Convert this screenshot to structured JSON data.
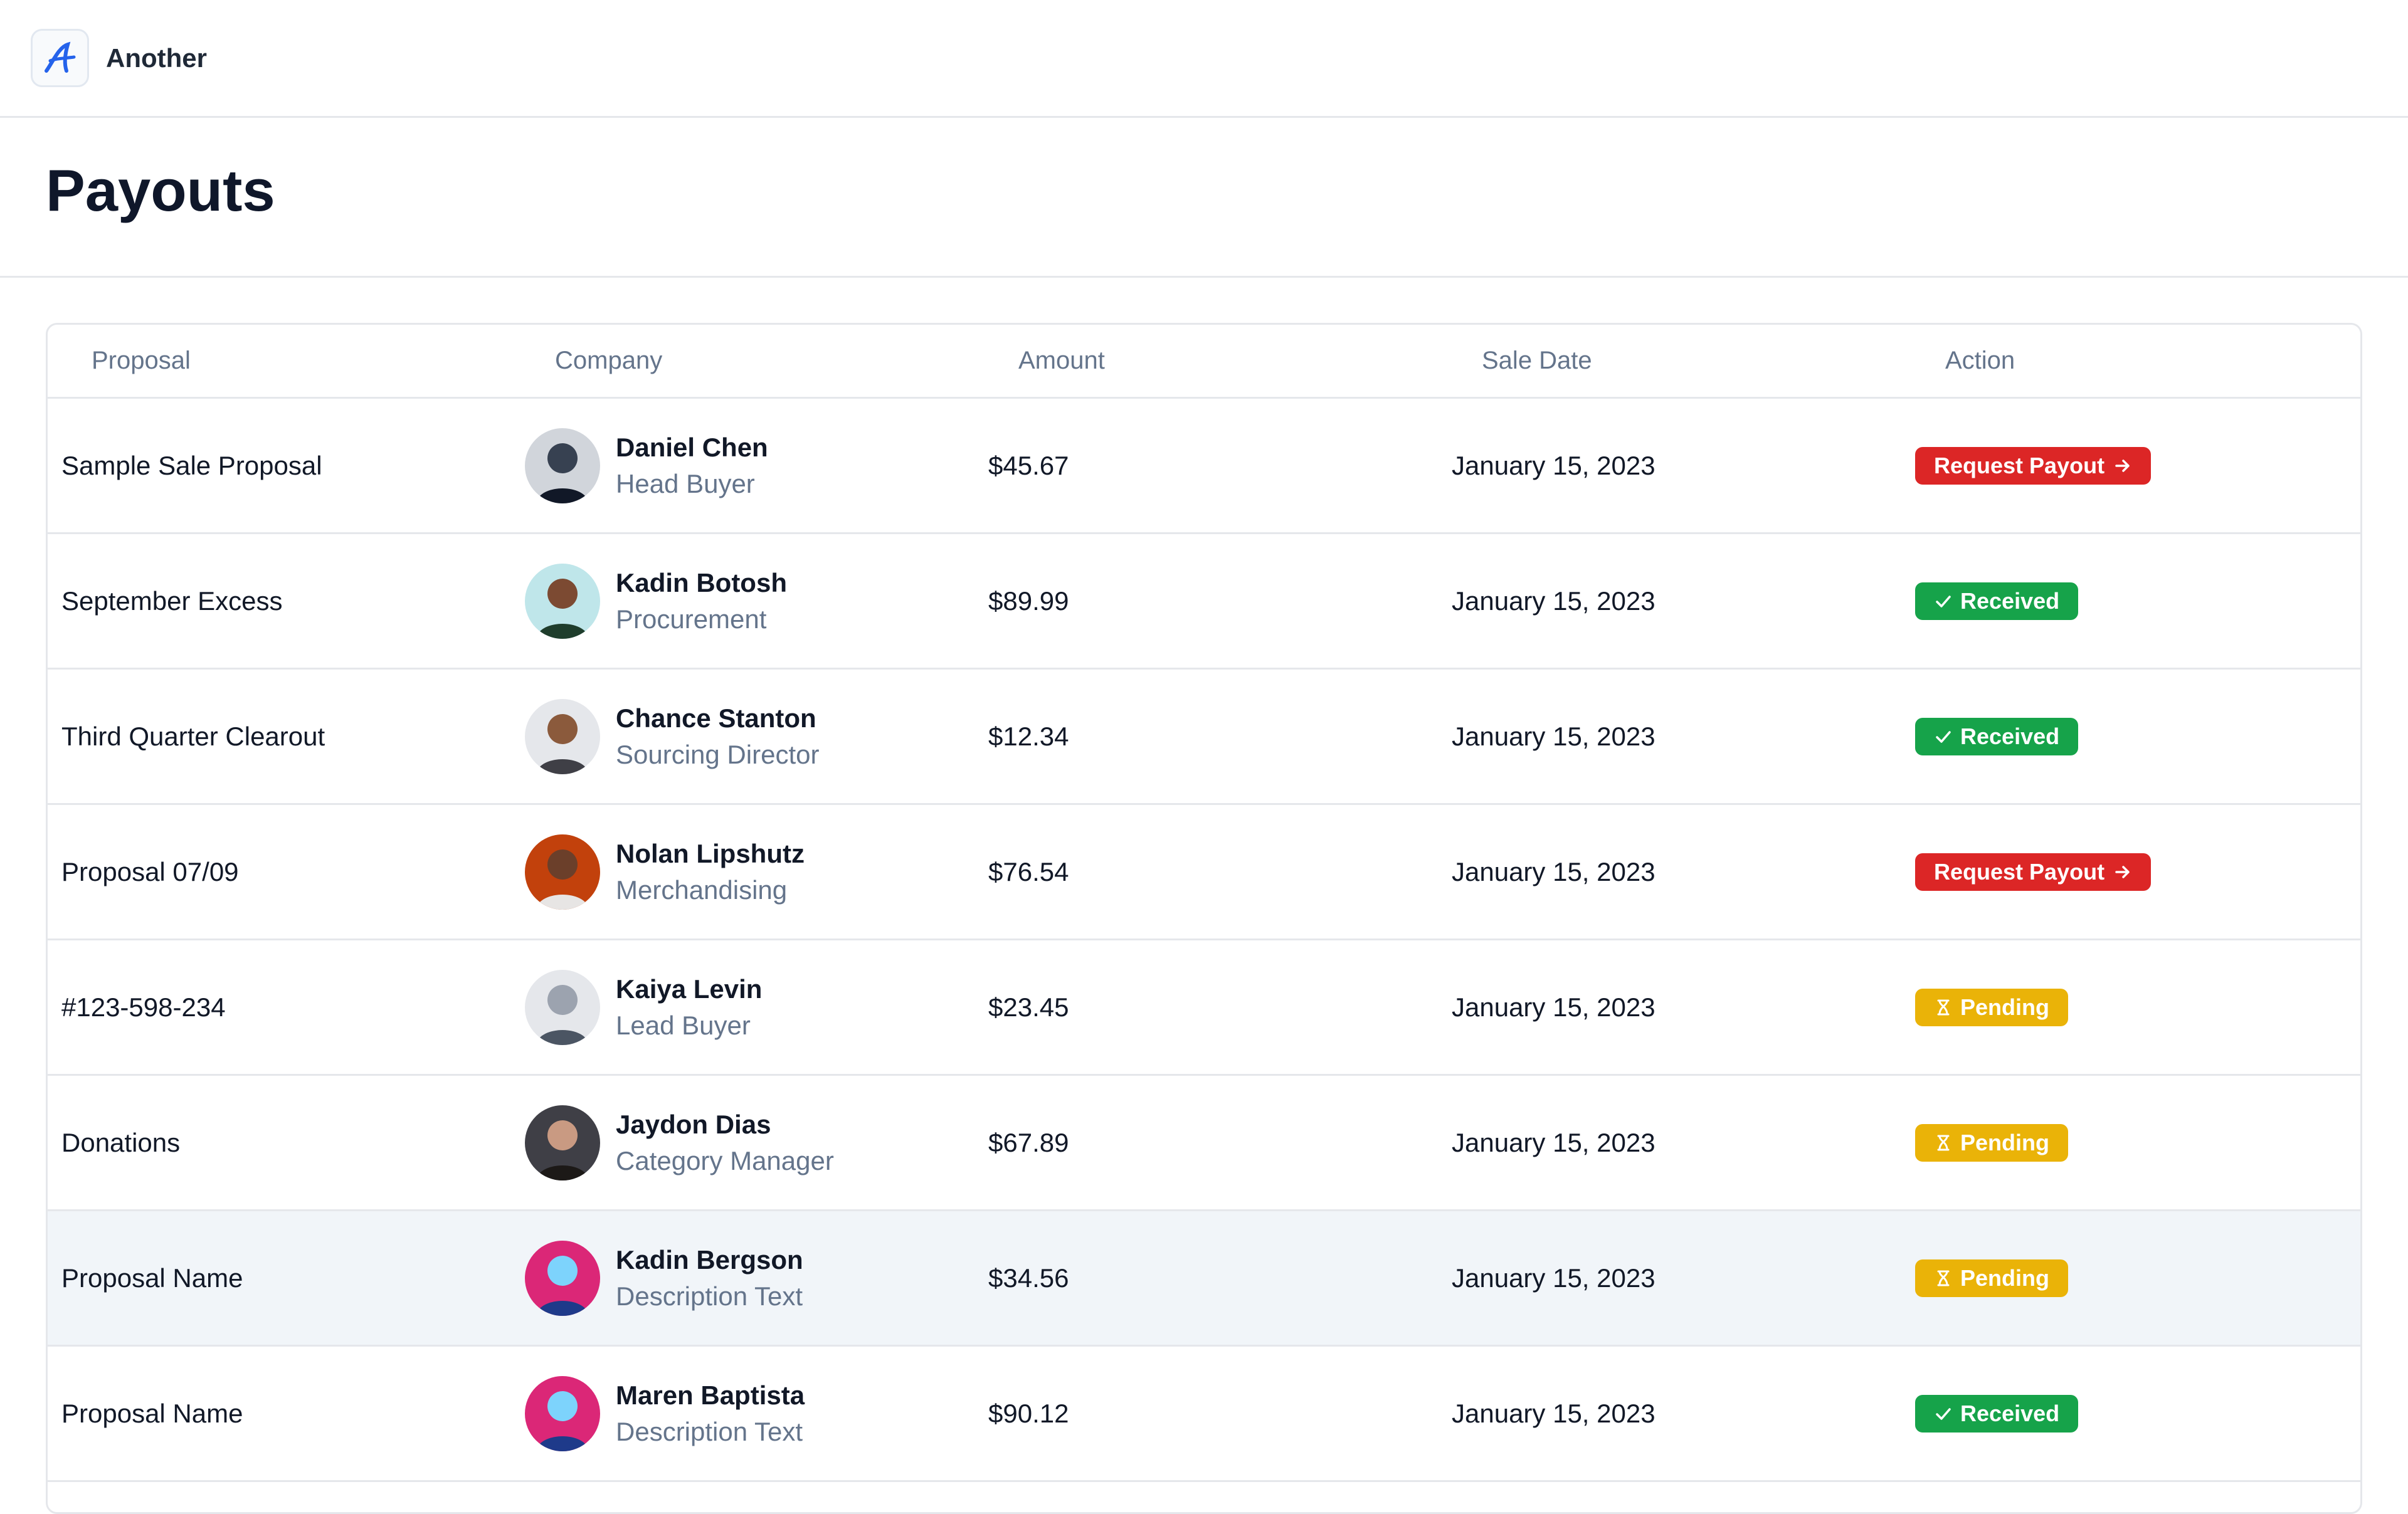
{
  "app": {
    "name": "Another",
    "logo_icon": "script-a-logo-icon",
    "accent": "#2563eb"
  },
  "page": {
    "title": "Payouts"
  },
  "table": {
    "columns": [
      "Proposal",
      "Company",
      "Amount",
      "Sale Date",
      "Action"
    ],
    "rows": [
      {
        "proposal": "Sample Sale Proposal",
        "name": "Daniel Chen",
        "role": "Head Buyer",
        "amount": "$45.67",
        "date": "January 15, 2023",
        "action": "Request Payout",
        "status": "request"
      },
      {
        "proposal": "September Excess",
        "name": "Kadin Botosh",
        "role": "Procurement",
        "amount": "$89.99",
        "date": "January 15, 2023",
        "action": "Received",
        "status": "received"
      },
      {
        "proposal": "Third Quarter Clearout",
        "name": "Chance Stanton",
        "role": "Sourcing Director",
        "amount": "$12.34",
        "date": "January 15, 2023",
        "action": "Received",
        "status": "received"
      },
      {
        "proposal": "Proposal 07/09",
        "name": "Nolan Lipshutz",
        "role": "Merchandising",
        "amount": "$76.54",
        "date": "January 15, 2023",
        "action": "Request Payout",
        "status": "request"
      },
      {
        "proposal": "#123-598-234",
        "name": "Kaiya Levin",
        "role": "Lead Buyer",
        "amount": "$23.45",
        "date": "January 15, 2023",
        "action": "Pending",
        "status": "pending"
      },
      {
        "proposal": "Donations",
        "name": "Jaydon Dias",
        "role": "Category Manager",
        "amount": "$67.89",
        "date": "January 15, 2023",
        "action": "Pending",
        "status": "pending"
      },
      {
        "proposal": "Proposal Name",
        "name": "Kadin Bergson",
        "role": "Description Text",
        "amount": "$34.56",
        "date": "January 15, 2023",
        "action": "Pending",
        "status": "pending"
      },
      {
        "proposal": "Proposal Name",
        "name": "Maren Baptista",
        "role": "Description Text",
        "amount": "$90.12",
        "date": "January 15, 2023",
        "action": "Received",
        "status": "received"
      }
    ]
  },
  "status_colors": {
    "request": "#dc2626",
    "received": "#16a34a",
    "pending": "#eab308"
  }
}
